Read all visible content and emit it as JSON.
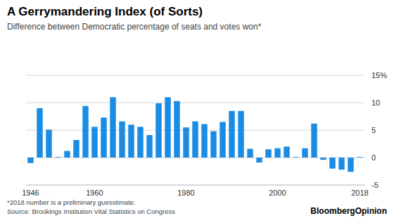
{
  "chart_data": {
    "type": "bar",
    "title": "A Gerrymandering Index (of Sorts)",
    "subtitle": "Difference between Democratic percentage of seats and votes won*",
    "footnote": "*2018 number is a preliminary guesstimate.",
    "source": "Source: Brookings Institution Vital Statistics on Congress",
    "brand": "BloombergOpinion",
    "x": [
      1946,
      1948,
      1950,
      1952,
      1954,
      1956,
      1958,
      1960,
      1962,
      1964,
      1966,
      1968,
      1970,
      1972,
      1974,
      1976,
      1978,
      1980,
      1982,
      1984,
      1986,
      1988,
      1990,
      1992,
      1994,
      1996,
      1998,
      2000,
      2002,
      2004,
      2006,
      2008,
      2010,
      2012,
      2014,
      2016,
      2018
    ],
    "values": [
      -1.0,
      9.0,
      5.1,
      0.1,
      1.2,
      3.2,
      9.4,
      5.6,
      7.3,
      11.0,
      6.6,
      6.0,
      5.6,
      4.1,
      9.9,
      11.0,
      10.3,
      5.5,
      6.6,
      6.1,
      4.8,
      6.5,
      8.5,
      8.5,
      1.6,
      -0.9,
      1.5,
      1.7,
      2.0,
      0.1,
      1.7,
      6.2,
      -0.4,
      -2.0,
      -2.2,
      -2.6,
      0.1
    ],
    "color": "#1b8ce3",
    "xlim": [
      1945,
      2019
    ],
    "xticks": [
      1946,
      1960,
      1980,
      2000,
      2018
    ],
    "ylim": [
      -5,
      15
    ],
    "yticks": [
      -5,
      0,
      5,
      10,
      {
        "value": 15,
        "label": "15%"
      }
    ],
    "grid": true
  }
}
